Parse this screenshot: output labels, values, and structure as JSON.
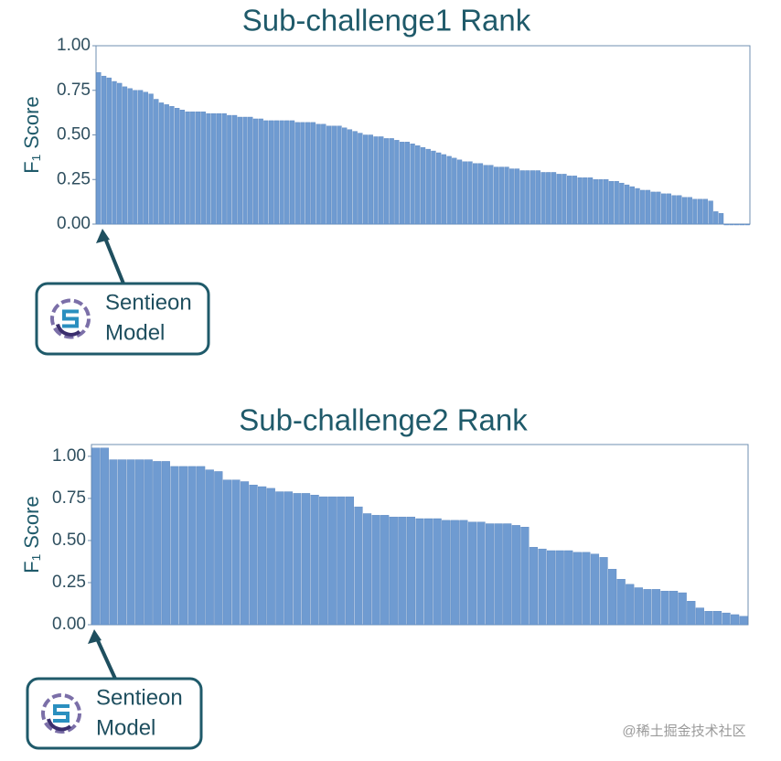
{
  "chart_data": [
    {
      "type": "bar",
      "title": "Sub-challenge1 Rank",
      "y_label": "F₁ Score",
      "annotation": [
        "Sentieon",
        "Model"
      ],
      "color": "#6f9bd1",
      "ylim": [
        0,
        1.0
      ],
      "yticks": [
        {
          "value": 0,
          "label": "0.00"
        },
        {
          "value": 0.25,
          "label": "0.25"
        },
        {
          "value": 0.5,
          "label": "0.50"
        },
        {
          "value": 0.75,
          "label": "0.75"
        },
        {
          "value": 1,
          "label": "1.00"
        }
      ],
      "categories": [
        null,
        null,
        null,
        null,
        null,
        null,
        null,
        null,
        null,
        null,
        null,
        null,
        null,
        null,
        null,
        null,
        null,
        null,
        null,
        null,
        null,
        null,
        null,
        null,
        null,
        null,
        null,
        null,
        null,
        null,
        null,
        null,
        null,
        null,
        null,
        null,
        null,
        null,
        null,
        null,
        null,
        null,
        null,
        null,
        null,
        null,
        null,
        null,
        null,
        null,
        null,
        null,
        null,
        null,
        null,
        null,
        null,
        null,
        null,
        null,
        null,
        null,
        null,
        null,
        null,
        null,
        null,
        null,
        null,
        null,
        null,
        null,
        null,
        null,
        null,
        null,
        null,
        null,
        null,
        null,
        null,
        null,
        null,
        null,
        null,
        null,
        null,
        null,
        null,
        null,
        null,
        null,
        null,
        null,
        null,
        null,
        null,
        null,
        null,
        null,
        null,
        null,
        null,
        null,
        null,
        null,
        null,
        null,
        null,
        null,
        null,
        null,
        null,
        null,
        null,
        null,
        null,
        null,
        null,
        null,
        null,
        null,
        null,
        null,
        null
      ],
      "values": [
        0.85,
        0.83,
        0.82,
        0.8,
        0.79,
        0.77,
        0.76,
        0.75,
        0.75,
        0.74,
        0.73,
        0.7,
        0.68,
        0.67,
        0.66,
        0.65,
        0.64,
        0.63,
        0.63,
        0.63,
        0.63,
        0.62,
        0.62,
        0.62,
        0.62,
        0.61,
        0.61,
        0.6,
        0.6,
        0.6,
        0.59,
        0.59,
        0.58,
        0.58,
        0.58,
        0.58,
        0.58,
        0.58,
        0.57,
        0.57,
        0.57,
        0.57,
        0.56,
        0.56,
        0.55,
        0.55,
        0.55,
        0.54,
        0.53,
        0.52,
        0.51,
        0.5,
        0.5,
        0.49,
        0.49,
        0.48,
        0.48,
        0.47,
        0.46,
        0.46,
        0.45,
        0.44,
        0.43,
        0.42,
        0.41,
        0.4,
        0.39,
        0.38,
        0.37,
        0.36,
        0.35,
        0.35,
        0.34,
        0.34,
        0.33,
        0.33,
        0.32,
        0.32,
        0.32,
        0.31,
        0.31,
        0.3,
        0.3,
        0.3,
        0.3,
        0.29,
        0.29,
        0.29,
        0.28,
        0.28,
        0.27,
        0.27,
        0.26,
        0.26,
        0.26,
        0.25,
        0.25,
        0.25,
        0.24,
        0.24,
        0.23,
        0.22,
        0.21,
        0.2,
        0.19,
        0.19,
        0.18,
        0.18,
        0.17,
        0.17,
        0.16,
        0.16,
        0.15,
        0.15,
        0.14,
        0.14,
        0.14,
        0.13,
        0.07,
        0.06,
        0,
        0,
        0,
        0,
        0
      ]
    },
    {
      "type": "bar",
      "title": "Sub-challenge2 Rank",
      "y_label": "F₁ Score",
      "annotation": [
        "Sentieon",
        "Model"
      ],
      "color": "#6f9bd1",
      "ylim": [
        0,
        1.07
      ],
      "yticks": [
        {
          "value": 0,
          "label": "0.00"
        },
        {
          "value": 0.25,
          "label": "0.25"
        },
        {
          "value": 0.5,
          "label": "0.50"
        },
        {
          "value": 0.75,
          "label": "0.75"
        },
        {
          "value": 1,
          "label": "1.00"
        }
      ],
      "categories": [
        null,
        null,
        null,
        null,
        null,
        null,
        null,
        null,
        null,
        null,
        null,
        null,
        null,
        null,
        null,
        null,
        null,
        null,
        null,
        null,
        null,
        null,
        null,
        null,
        null,
        null,
        null,
        null,
        null,
        null,
        null,
        null,
        null,
        null,
        null,
        null,
        null,
        null,
        null,
        null,
        null,
        null,
        null,
        null,
        null,
        null,
        null,
        null,
        null,
        null,
        null,
        null,
        null,
        null,
        null,
        null,
        null,
        null,
        null,
        null,
        null,
        null,
        null,
        null,
        null,
        null,
        null,
        null,
        null,
        null,
        null,
        null,
        null,
        null,
        null
      ],
      "values": [
        1.05,
        1.05,
        0.98,
        0.98,
        0.98,
        0.98,
        0.98,
        0.97,
        0.97,
        0.94,
        0.94,
        0.94,
        0.94,
        0.92,
        0.91,
        0.86,
        0.86,
        0.85,
        0.83,
        0.82,
        0.81,
        0.79,
        0.79,
        0.78,
        0.78,
        0.77,
        0.76,
        0.76,
        0.76,
        0.76,
        0.7,
        0.66,
        0.65,
        0.65,
        0.64,
        0.64,
        0.64,
        0.63,
        0.63,
        0.63,
        0.62,
        0.62,
        0.62,
        0.61,
        0.61,
        0.6,
        0.6,
        0.6,
        0.59,
        0.58,
        0.46,
        0.45,
        0.44,
        0.44,
        0.44,
        0.43,
        0.43,
        0.42,
        0.4,
        0.33,
        0.27,
        0.24,
        0.22,
        0.21,
        0.21,
        0.2,
        0.2,
        0.19,
        0.14,
        0.1,
        0.08,
        0.08,
        0.07,
        0.06,
        0.05
      ]
    }
  ],
  "watermark": "@稀土掘金技术社区"
}
